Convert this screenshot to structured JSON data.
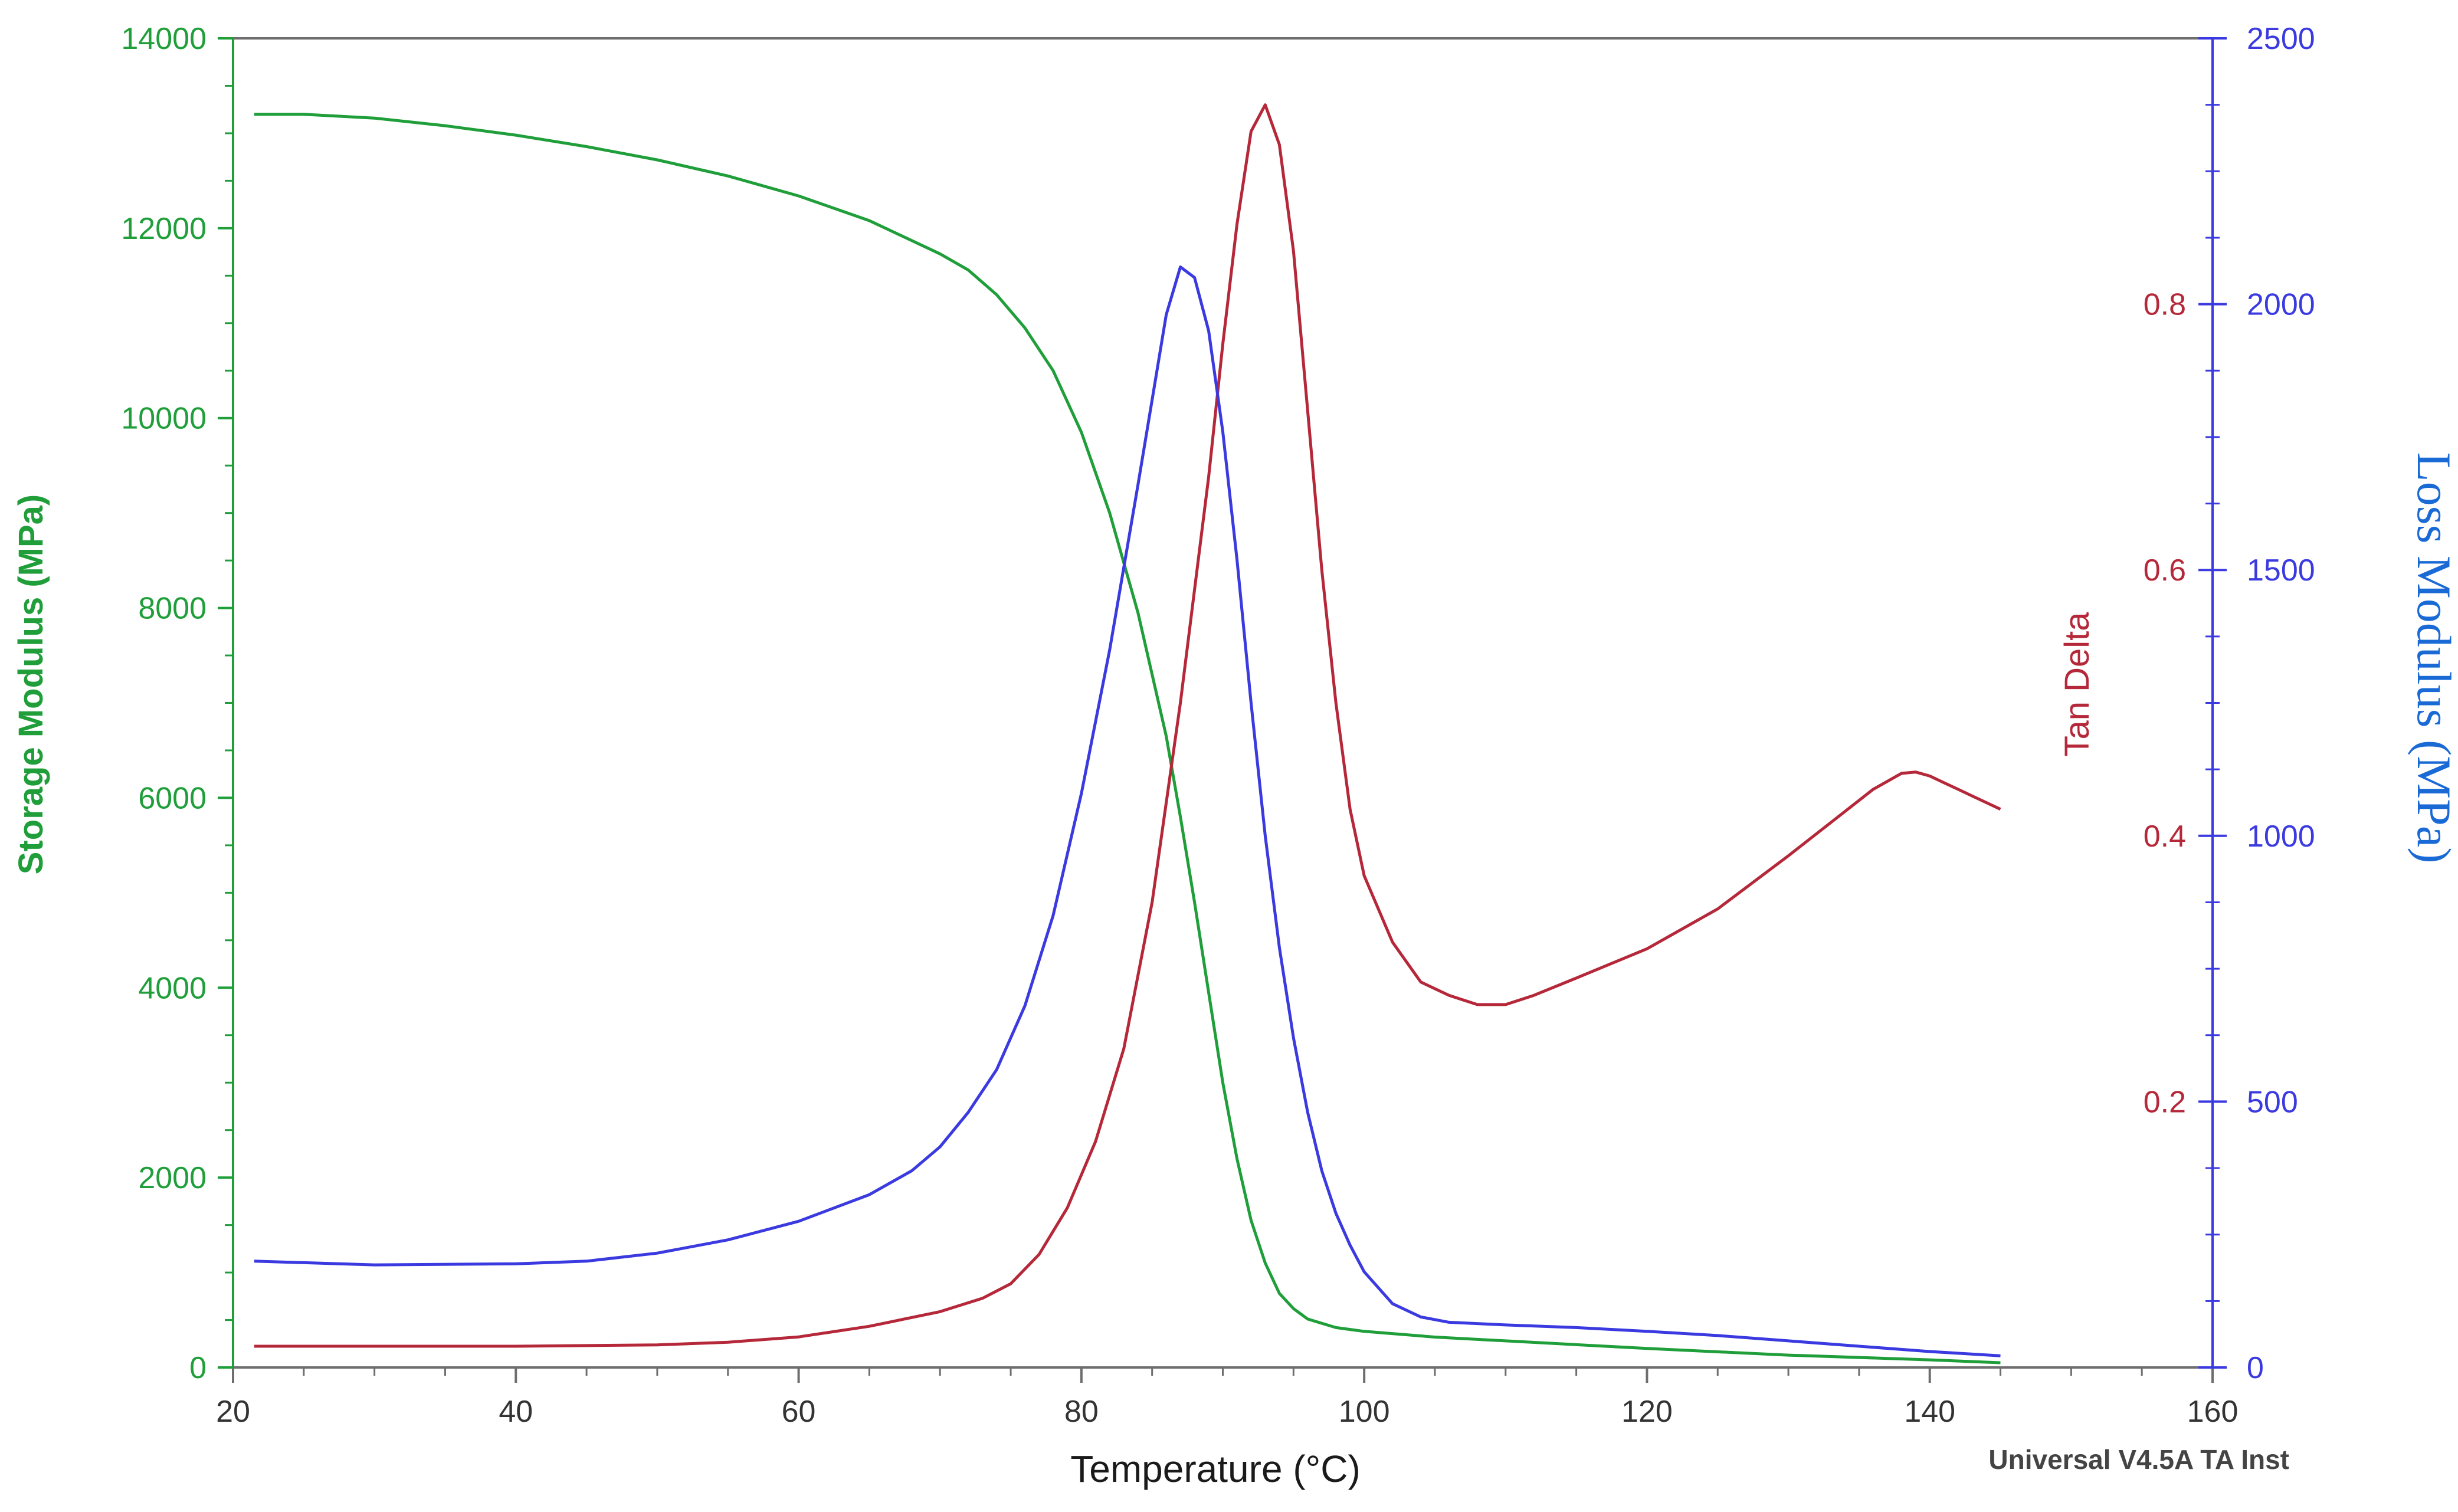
{
  "chart_data": {
    "type": "line",
    "title": "",
    "xlabel": "Temperature (°C)",
    "xlim": [
      20,
      160
    ],
    "x_ticks": [
      20,
      40,
      60,
      80,
      100,
      120,
      140,
      160
    ],
    "left_axis": {
      "label": "Storage Modulus (MPa)",
      "color": "#1f9e3a",
      "ylim": [
        0,
        14000
      ],
      "ticks": [
        0,
        2000,
        4000,
        6000,
        8000,
        10000,
        12000,
        14000
      ]
    },
    "right_axis_inner": {
      "label": "Tan Delta",
      "color": "#b5283a",
      "ylim": [
        0,
        1.0
      ],
      "ticks": [
        0.2,
        0.4,
        0.6,
        0.8
      ]
    },
    "right_axis_outer": {
      "label": "Loss Modulus (MPa)",
      "color": "#3a3ae0",
      "label_color": "#1a6ad6",
      "ylim": [
        0,
        2500
      ],
      "ticks": [
        0,
        500,
        1000,
        1500,
        2000,
        2500
      ]
    },
    "grid": false,
    "legend": "none",
    "footer": "Universal V4.5A TA Inst",
    "series": [
      {
        "axis": "left",
        "color": "#1f9e3a",
        "points": [
          [
            21.5,
            13200
          ],
          [
            25,
            13200
          ],
          [
            30,
            13160
          ],
          [
            35,
            13080
          ],
          [
            40,
            12980
          ],
          [
            45,
            12860
          ],
          [
            50,
            12720
          ],
          [
            55,
            12550
          ],
          [
            60,
            12340
          ],
          [
            65,
            12080
          ],
          [
            70,
            11730
          ],
          [
            72,
            11560
          ],
          [
            74,
            11300
          ],
          [
            76,
            10950
          ],
          [
            78,
            10500
          ],
          [
            80,
            9850
          ],
          [
            82,
            9000
          ],
          [
            84,
            7950
          ],
          [
            86,
            6650
          ],
          [
            87,
            5800
          ],
          [
            88,
            4900
          ],
          [
            89,
            3950
          ],
          [
            90,
            3000
          ],
          [
            91,
            2200
          ],
          [
            92,
            1550
          ],
          [
            93,
            1100
          ],
          [
            94,
            780
          ],
          [
            95,
            620
          ],
          [
            96,
            510
          ],
          [
            98,
            420
          ],
          [
            100,
            380
          ],
          [
            105,
            320
          ],
          [
            110,
            280
          ],
          [
            120,
            200
          ],
          [
            130,
            130
          ],
          [
            140,
            80
          ],
          [
            145,
            50
          ]
        ]
      },
      {
        "axis": "right_inner",
        "color": "#b5283a",
        "points": [
          [
            21.5,
            0.016
          ],
          [
            30,
            0.016
          ],
          [
            40,
            0.016
          ],
          [
            50,
            0.017
          ],
          [
            55,
            0.019
          ],
          [
            60,
            0.023
          ],
          [
            65,
            0.031
          ],
          [
            70,
            0.042
          ],
          [
            73,
            0.052
          ],
          [
            75,
            0.063
          ],
          [
            77,
            0.085
          ],
          [
            79,
            0.12
          ],
          [
            81,
            0.17
          ],
          [
            83,
            0.24
          ],
          [
            85,
            0.35
          ],
          [
            87,
            0.5
          ],
          [
            89,
            0.67
          ],
          [
            90,
            0.77
          ],
          [
            91,
            0.86
          ],
          [
            92,
            0.93
          ],
          [
            93,
            0.95
          ],
          [
            94,
            0.92
          ],
          [
            95,
            0.84
          ],
          [
            96,
            0.72
          ],
          [
            97,
            0.6
          ],
          [
            98,
            0.5
          ],
          [
            99,
            0.42
          ],
          [
            100,
            0.37
          ],
          [
            102,
            0.32
          ],
          [
            104,
            0.29
          ],
          [
            106,
            0.28
          ],
          [
            108,
            0.273
          ],
          [
            110,
            0.273
          ],
          [
            112,
            0.28
          ],
          [
            115,
            0.293
          ],
          [
            120,
            0.315
          ],
          [
            125,
            0.345
          ],
          [
            130,
            0.385
          ],
          [
            133,
            0.41
          ],
          [
            136,
            0.435
          ],
          [
            138,
            0.447
          ],
          [
            139,
            0.448
          ],
          [
            140,
            0.445
          ],
          [
            141,
            0.44
          ],
          [
            142,
            0.435
          ],
          [
            143,
            0.43
          ],
          [
            144,
            0.425
          ],
          [
            145,
            0.42
          ]
        ]
      },
      {
        "axis": "right_outer",
        "color": "#3a3ae0",
        "points": [
          [
            21.5,
            200
          ],
          [
            30,
            193
          ],
          [
            40,
            195
          ],
          [
            45,
            200
          ],
          [
            50,
            215
          ],
          [
            55,
            240
          ],
          [
            60,
            275
          ],
          [
            65,
            325
          ],
          [
            68,
            370
          ],
          [
            70,
            415
          ],
          [
            72,
            480
          ],
          [
            74,
            560
          ],
          [
            76,
            680
          ],
          [
            78,
            850
          ],
          [
            80,
            1080
          ],
          [
            82,
            1350
          ],
          [
            84,
            1660
          ],
          [
            85,
            1820
          ],
          [
            86,
            1980
          ],
          [
            87,
            2070
          ],
          [
            88,
            2050
          ],
          [
            89,
            1950
          ],
          [
            90,
            1760
          ],
          [
            91,
            1520
          ],
          [
            92,
            1250
          ],
          [
            93,
            1000
          ],
          [
            94,
            790
          ],
          [
            95,
            620
          ],
          [
            96,
            480
          ],
          [
            97,
            370
          ],
          [
            98,
            290
          ],
          [
            99,
            230
          ],
          [
            100,
            180
          ],
          [
            102,
            120
          ],
          [
            104,
            95
          ],
          [
            106,
            85
          ],
          [
            110,
            80
          ],
          [
            115,
            75
          ],
          [
            120,
            68
          ],
          [
            125,
            60
          ],
          [
            130,
            50
          ],
          [
            135,
            40
          ],
          [
            140,
            30
          ],
          [
            145,
            22
          ]
        ]
      }
    ]
  }
}
